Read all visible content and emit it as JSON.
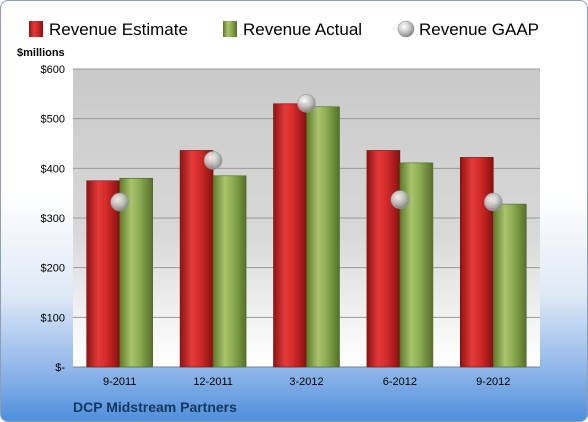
{
  "chart_data": {
    "type": "bar",
    "title": "",
    "company": "DCP Midstream Partners",
    "unit_label": "$millions",
    "categories": [
      "9-2011",
      "12-2011",
      "3-2012",
      "6-2012",
      "9-2012"
    ],
    "y_ticks": [
      "$-",
      "$100",
      "$200",
      "$300",
      "$400",
      "$500",
      "$600"
    ],
    "ylim": [
      0,
      600
    ],
    "grid": true,
    "legend_position": "top",
    "series": [
      {
        "name": "Revenue Estimate",
        "kind": "bar",
        "color": "#d42a2a",
        "values": [
          375,
          436,
          530,
          436,
          422
        ]
      },
      {
        "name": "Revenue Actual",
        "kind": "bar",
        "color": "#8cac52",
        "values": [
          380,
          385,
          524,
          411,
          328
        ]
      },
      {
        "name": "Revenue GAAP",
        "kind": "marker",
        "color": "#c8c8c8",
        "values": [
          332,
          416,
          531,
          337,
          332
        ]
      }
    ]
  }
}
